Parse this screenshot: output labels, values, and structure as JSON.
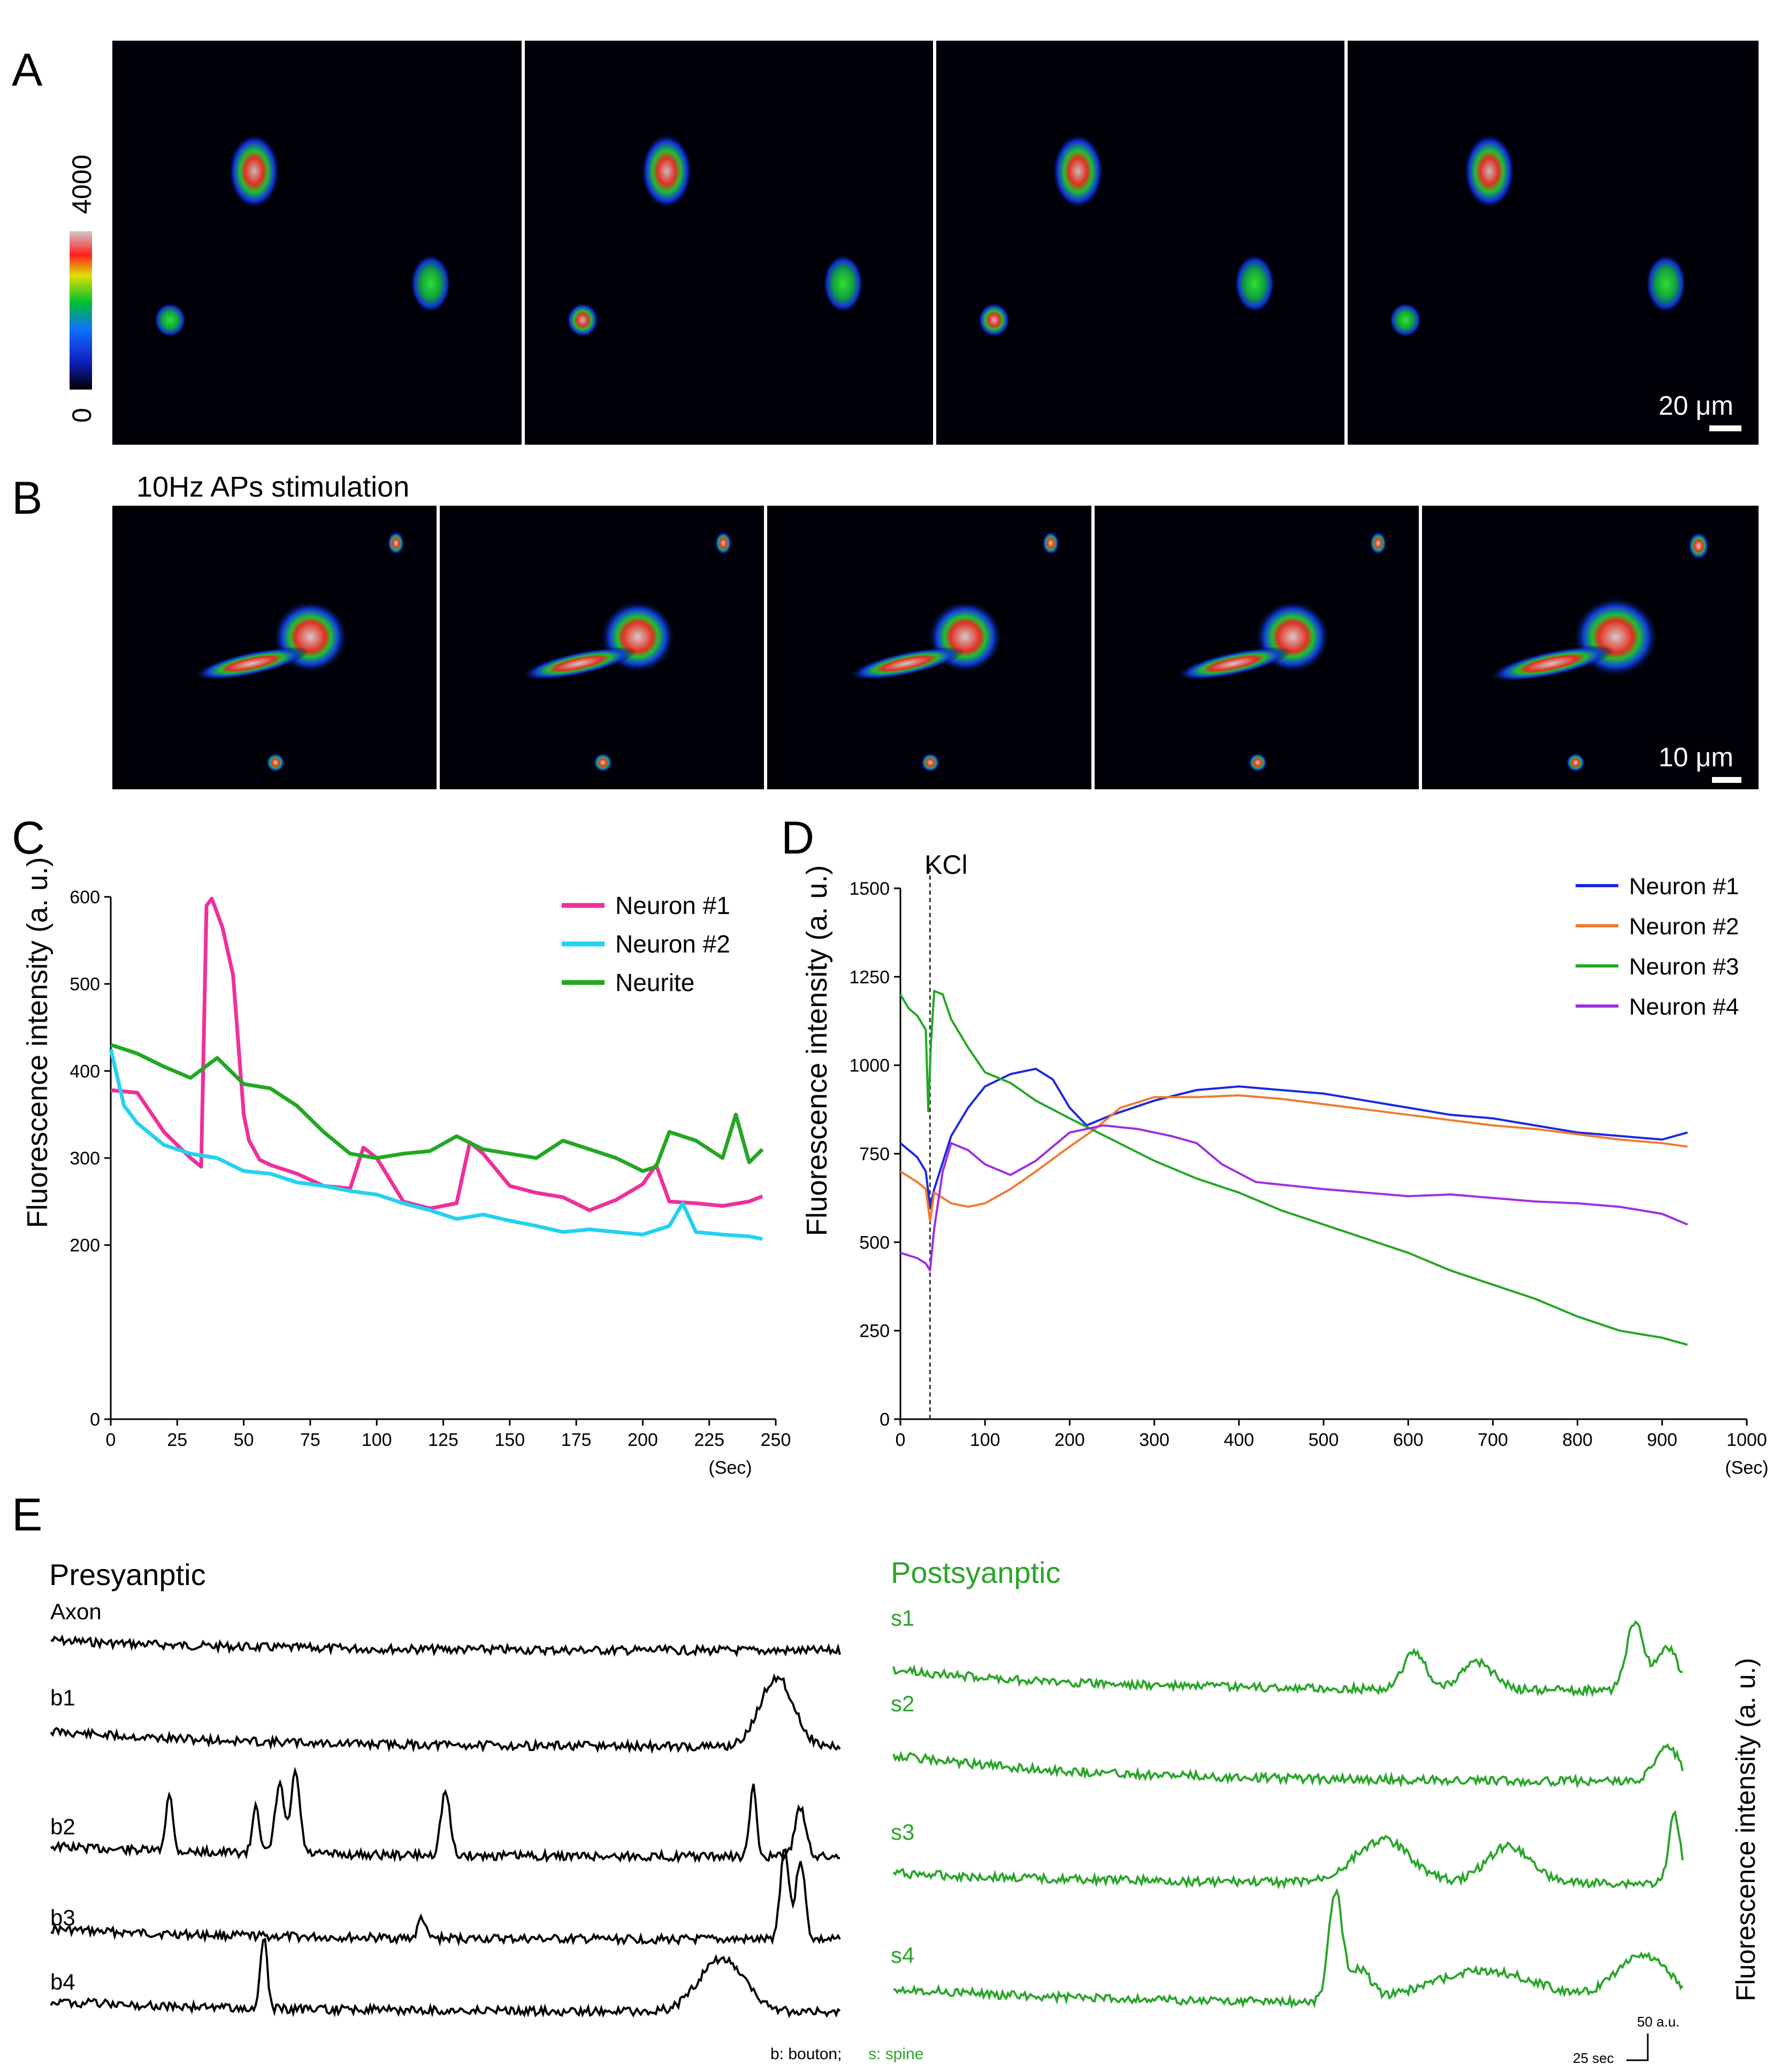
{
  "panels": {
    "A": {
      "label": "A",
      "colorbar_max": "4000",
      "colorbar_min": "0",
      "scalebar": "20 μm"
    },
    "B": {
      "label": "B",
      "title": "10Hz APs stimulation",
      "scalebar": "10 μm"
    },
    "C": {
      "label": "C",
      "ylabel": "Fluorescence intensity (a. u.)",
      "xunit": "(Sec)"
    },
    "D": {
      "label": "D",
      "ylabel": "Fluorescence intensity (a. u.)",
      "xunit": "(Sec)",
      "marker": "KCl"
    },
    "E": {
      "label": "E",
      "pre_title": "Presyanptic",
      "post_title": "Postsyanptic",
      "pre_labels": [
        "Axon",
        "b1",
        "b2",
        "b3",
        "b4"
      ],
      "post_labels": [
        "s1",
        "s2",
        "s3",
        "s4"
      ],
      "footnote_b": "b: bouton;",
      "footnote_s": "s: spine",
      "ylabel": "Fluorescence intensity (a. u.)",
      "scale_y": "50 a.u.",
      "scale_x": "25 sec"
    }
  },
  "colors": {
    "pink": "#ef2f9c",
    "cyan": "#22d2ee",
    "green": "#22a722",
    "blue": "#1a28e0",
    "orange": "#f07a30",
    "purple": "#a02de0",
    "pre_trace": "#000000",
    "post_trace": "#2aa52a"
  },
  "chart_data": [
    {
      "id": "C",
      "type": "line",
      "xlabel": "",
      "ylabel": "Fluorescence intensity (a. u.)",
      "xlim": [
        0,
        250
      ],
      "ylim": [
        0,
        600
      ],
      "xticks": [
        "0",
        "25",
        "50",
        "75",
        "100",
        "125",
        "150",
        "175",
        "200",
        "225",
        "250"
      ],
      "yticks": [
        "0",
        "200",
        "300",
        "400",
        "500",
        "600"
      ],
      "legend_position": "top-right",
      "series": [
        {
          "name": "Neuron #1",
          "color": "#ef2f9c",
          "x": [
            0,
            10,
            20,
            30,
            34,
            36,
            38,
            42,
            46,
            50,
            52,
            56,
            60,
            70,
            80,
            90,
            95,
            100,
            110,
            120,
            130,
            135,
            140,
            150,
            160,
            170,
            180,
            190,
            200,
            205,
            210,
            220,
            230,
            240,
            245
          ],
          "y": [
            378,
            375,
            330,
            300,
            290,
            590,
            598,
            565,
            510,
            350,
            320,
            298,
            292,
            282,
            268,
            265,
            312,
            300,
            250,
            242,
            248,
            318,
            305,
            268,
            260,
            255,
            240,
            252,
            270,
            292,
            250,
            248,
            245,
            250,
            256
          ]
        },
        {
          "name": "Neuron #2",
          "color": "#22d2ee",
          "x": [
            0,
            5,
            10,
            20,
            30,
            40,
            50,
            60,
            70,
            80,
            90,
            100,
            110,
            120,
            130,
            140,
            150,
            160,
            170,
            180,
            190,
            200,
            210,
            215,
            220,
            230,
            240,
            245
          ],
          "y": [
            425,
            360,
            340,
            315,
            305,
            300,
            285,
            282,
            272,
            268,
            262,
            258,
            248,
            240,
            230,
            235,
            228,
            222,
            215,
            218,
            215,
            212,
            222,
            248,
            215,
            212,
            210,
            207
          ]
        },
        {
          "name": "Neurite",
          "color": "#22a722",
          "x": [
            0,
            10,
            20,
            30,
            40,
            50,
            60,
            70,
            80,
            90,
            100,
            110,
            120,
            130,
            140,
            150,
            160,
            170,
            180,
            190,
            200,
            205,
            210,
            220,
            230,
            235,
            240,
            245
          ],
          "y": [
            430,
            420,
            405,
            392,
            415,
            385,
            380,
            360,
            330,
            305,
            300,
            305,
            308,
            325,
            310,
            305,
            300,
            320,
            310,
            300,
            285,
            290,
            330,
            320,
            300,
            350,
            295,
            310
          ]
        }
      ]
    },
    {
      "id": "D",
      "type": "line",
      "xlabel": "",
      "ylabel": "Fluorescence intensity (a. u.)",
      "xlim": [
        0,
        1000
      ],
      "ylim": [
        0,
        1500
      ],
      "xticks": [
        "0",
        "100",
        "200",
        "300",
        "400",
        "500",
        "600",
        "700",
        "800",
        "900",
        "1000"
      ],
      "yticks": [
        "0",
        "250",
        "500",
        "750",
        "1000",
        "1250",
        "1500"
      ],
      "vline_x": 35,
      "legend_position": "top-right",
      "series": [
        {
          "name": "Neuron #1",
          "color": "#1a28e0",
          "x": [
            0,
            20,
            30,
            35,
            40,
            60,
            80,
            100,
            130,
            160,
            180,
            200,
            220,
            250,
            300,
            350,
            400,
            450,
            500,
            550,
            600,
            650,
            700,
            750,
            800,
            850,
            900,
            930
          ],
          "y": [
            780,
            740,
            700,
            600,
            650,
            800,
            880,
            940,
            975,
            990,
            960,
            880,
            830,
            860,
            900,
            930,
            940,
            930,
            920,
            900,
            880,
            860,
            850,
            830,
            810,
            800,
            790,
            810
          ]
        },
        {
          "name": "Neuron #2",
          "color": "#f07a30",
          "x": [
            0,
            20,
            30,
            35,
            40,
            60,
            80,
            100,
            130,
            160,
            200,
            230,
            260,
            300,
            350,
            400,
            450,
            500,
            550,
            600,
            650,
            700,
            750,
            800,
            850,
            900,
            930
          ],
          "y": [
            700,
            670,
            650,
            560,
            640,
            610,
            600,
            610,
            650,
            700,
            770,
            820,
            880,
            910,
            910,
            915,
            905,
            890,
            875,
            860,
            845,
            830,
            820,
            805,
            790,
            780,
            770
          ]
        },
        {
          "name": "Neuron #3",
          "color": "#22a722",
          "x": [
            0,
            10,
            20,
            30,
            33,
            36,
            40,
            50,
            60,
            80,
            100,
            130,
            160,
            200,
            250,
            300,
            350,
            400,
            450,
            500,
            550,
            600,
            650,
            700,
            750,
            800,
            850,
            900,
            930
          ],
          "y": [
            1200,
            1160,
            1140,
            1100,
            870,
            1060,
            1210,
            1200,
            1130,
            1050,
            980,
            950,
            900,
            850,
            790,
            730,
            680,
            640,
            590,
            550,
            510,
            470,
            420,
            380,
            340,
            290,
            250,
            230,
            210
          ]
        },
        {
          "name": "Neuron #4",
          "color": "#a02de0",
          "x": [
            0,
            20,
            30,
            35,
            40,
            50,
            60,
            80,
            100,
            130,
            160,
            200,
            240,
            280,
            320,
            350,
            380,
            420,
            460,
            500,
            550,
            600,
            650,
            700,
            750,
            800,
            850,
            900,
            930
          ],
          "y": [
            470,
            455,
            440,
            420,
            540,
            700,
            780,
            760,
            720,
            690,
            730,
            810,
            830,
            820,
            800,
            780,
            720,
            670,
            660,
            650,
            640,
            630,
            635,
            625,
            615,
            610,
            600,
            580,
            550
          ]
        }
      ]
    }
  ]
}
